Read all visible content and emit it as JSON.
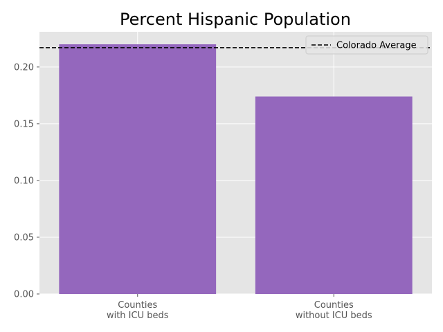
{
  "chart_data": {
    "type": "bar",
    "title": "Percent Hispanic Population",
    "categories": [
      [
        "Counties",
        "with ICU beds"
      ],
      [
        "Counties",
        "without ICU beds"
      ]
    ],
    "values": [
      0.22,
      0.174
    ],
    "bar_color": "#9467bd",
    "ylim": [
      0,
      0.231
    ],
    "yticks": [
      0.0,
      0.05,
      0.1,
      0.15,
      0.2
    ],
    "ytick_labels": [
      "0.00",
      "0.05",
      "0.10",
      "0.15",
      "0.20"
    ],
    "reference_line": {
      "label": "Colorado Average",
      "value": 0.217,
      "style": "dashed",
      "color": "#000000"
    },
    "grid": true,
    "legend_position": "top-right",
    "background_color": "#e5e5e5"
  }
}
